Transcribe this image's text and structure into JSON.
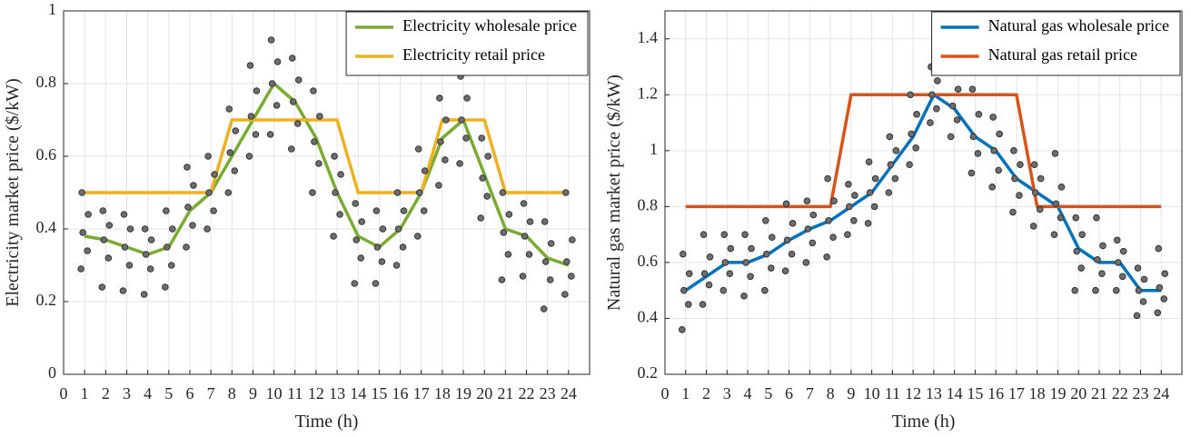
{
  "chart_data": [
    {
      "type": "line",
      "xlabel": "Time (h)",
      "ylabel": "Electricity market price ($/kW)",
      "xlim": [
        0,
        25
      ],
      "xticks": [
        0,
        1,
        2,
        3,
        4,
        5,
        6,
        7,
        8,
        9,
        10,
        11,
        12,
        13,
        14,
        15,
        16,
        17,
        18,
        19,
        20,
        21,
        22,
        23,
        24
      ],
      "ylim": [
        0,
        1
      ],
      "yticks": [
        0,
        0.2,
        0.4,
        0.6,
        0.8,
        1
      ],
      "grid": true,
      "legend": "upper right",
      "x": [
        1,
        2,
        3,
        4,
        5,
        6,
        7,
        8,
        9,
        10,
        11,
        12,
        13,
        14,
        15,
        16,
        17,
        18,
        19,
        20,
        21,
        22,
        23,
        24
      ],
      "series": [
        {
          "name": "Electricity wholesale price",
          "color": "#77ac30",
          "values": [
            0.38,
            0.37,
            0.35,
            0.33,
            0.35,
            0.45,
            0.5,
            0.6,
            0.7,
            0.8,
            0.75,
            0.65,
            0.5,
            0.38,
            0.35,
            0.4,
            0.5,
            0.65,
            0.7,
            0.55,
            0.4,
            0.38,
            0.32,
            0.3
          ]
        },
        {
          "name": "Electricity retail price",
          "color": "#edb120",
          "values": [
            0.5,
            0.5,
            0.5,
            0.5,
            0.5,
            0.5,
            0.5,
            0.7,
            0.7,
            0.7,
            0.7,
            0.7,
            0.7,
            0.5,
            0.5,
            0.5,
            0.5,
            0.7,
            0.7,
            0.7,
            0.5,
            0.5,
            0.5,
            0.5
          ]
        }
      ],
      "samples": {
        "color": "#6e6e6e",
        "values": [
          [
            0.29,
            0.34,
            0.39,
            0.44,
            0.5
          ],
          [
            0.24,
            0.32,
            0.37,
            0.41,
            0.45
          ],
          [
            0.23,
            0.3,
            0.35,
            0.4,
            0.44
          ],
          [
            0.22,
            0.29,
            0.33,
            0.37,
            0.4
          ],
          [
            0.24,
            0.3,
            0.35,
            0.4,
            0.45
          ],
          [
            0.35,
            0.41,
            0.46,
            0.52,
            0.57
          ],
          [
            0.4,
            0.45,
            0.5,
            0.55,
            0.6
          ],
          [
            0.5,
            0.56,
            0.61,
            0.67,
            0.73
          ],
          [
            0.6,
            0.66,
            0.71,
            0.78,
            0.85
          ],
          [
            0.66,
            0.74,
            0.8,
            0.86,
            0.92
          ],
          [
            0.62,
            0.69,
            0.75,
            0.81,
            0.87
          ],
          [
            0.5,
            0.58,
            0.64,
            0.71,
            0.78
          ],
          [
            0.38,
            0.44,
            0.5,
            0.55,
            0.6
          ],
          [
            0.25,
            0.32,
            0.37,
            0.42,
            0.47
          ],
          [
            0.25,
            0.31,
            0.35,
            0.4,
            0.45
          ],
          [
            0.3,
            0.35,
            0.4,
            0.45,
            0.5
          ],
          [
            0.38,
            0.45,
            0.5,
            0.56,
            0.62
          ],
          [
            0.52,
            0.59,
            0.64,
            0.7,
            0.76
          ],
          [
            0.58,
            0.65,
            0.7,
            0.76,
            0.82
          ],
          [
            0.43,
            0.49,
            0.54,
            0.6,
            0.65
          ],
          [
            0.26,
            0.33,
            0.39,
            0.44,
            0.5
          ],
          [
            0.27,
            0.33,
            0.38,
            0.42,
            0.47
          ],
          [
            0.18,
            0.26,
            0.31,
            0.36,
            0.42
          ],
          [
            0.22,
            0.27,
            0.31,
            0.37,
            0.5
          ]
        ]
      }
    },
    {
      "type": "line",
      "xlabel": "Time (h)",
      "ylabel": "Natural gas market price ($/kW)",
      "xlim": [
        0,
        25
      ],
      "xticks": [
        0,
        1,
        2,
        3,
        4,
        5,
        6,
        7,
        8,
        9,
        10,
        11,
        12,
        13,
        14,
        15,
        16,
        17,
        18,
        19,
        20,
        21,
        22,
        23,
        24
      ],
      "ylim": [
        0.2,
        1.5
      ],
      "yticks": [
        0.2,
        0.4,
        0.6,
        0.8,
        1,
        1.2,
        1.4
      ],
      "grid": true,
      "legend": "upper right",
      "x": [
        1,
        2,
        3,
        4,
        5,
        6,
        7,
        8,
        9,
        10,
        11,
        12,
        13,
        14,
        15,
        16,
        17,
        18,
        19,
        20,
        21,
        22,
        23,
        24
      ],
      "series": [
        {
          "name": "Natural gas wholesale price",
          "color": "#0072bd",
          "values": [
            0.5,
            0.55,
            0.6,
            0.6,
            0.63,
            0.68,
            0.72,
            0.75,
            0.8,
            0.85,
            0.95,
            1.05,
            1.2,
            1.15,
            1.05,
            1.0,
            0.9,
            0.85,
            0.8,
            0.65,
            0.6,
            0.6,
            0.5,
            0.5
          ]
        },
        {
          "name": "Natural gas retail price",
          "color": "#d95319",
          "values": [
            0.8,
            0.8,
            0.8,
            0.8,
            0.8,
            0.8,
            0.8,
            0.8,
            1.2,
            1.2,
            1.2,
            1.2,
            1.2,
            1.2,
            1.2,
            1.2,
            1.2,
            0.8,
            0.8,
            0.8,
            0.8,
            0.8,
            0.8,
            0.8
          ]
        }
      ],
      "samples": {
        "color": "#6e6e6e",
        "values": [
          [
            0.36,
            0.45,
            0.5,
            0.56,
            0.63
          ],
          [
            0.45,
            0.52,
            0.56,
            0.62,
            0.7
          ],
          [
            0.5,
            0.56,
            0.6,
            0.65,
            0.7
          ],
          [
            0.48,
            0.55,
            0.6,
            0.65,
            0.7
          ],
          [
            0.5,
            0.58,
            0.63,
            0.69,
            0.75
          ],
          [
            0.57,
            0.63,
            0.68,
            0.74,
            0.81
          ],
          [
            0.6,
            0.67,
            0.72,
            0.77,
            0.82
          ],
          [
            0.62,
            0.69,
            0.75,
            0.82,
            0.9
          ],
          [
            0.7,
            0.75,
            0.8,
            0.84,
            0.88
          ],
          [
            0.74,
            0.8,
            0.85,
            0.9,
            0.96
          ],
          [
            0.85,
            0.9,
            0.95,
            1.0,
            1.05
          ],
          [
            0.95,
            1.01,
            1.06,
            1.13,
            1.2
          ],
          [
            1.1,
            1.15,
            1.2,
            1.25,
            1.3
          ],
          [
            1.05,
            1.11,
            1.16,
            1.22,
            1.28
          ],
          [
            0.92,
            0.99,
            1.05,
            1.13,
            1.22
          ],
          [
            0.87,
            0.93,
            1.0,
            1.06,
            1.12
          ],
          [
            0.78,
            0.84,
            0.9,
            0.95,
            1.0
          ],
          [
            0.73,
            0.79,
            0.85,
            0.9,
            0.95
          ],
          [
            0.7,
            0.76,
            0.81,
            0.87,
            0.99
          ],
          [
            0.5,
            0.58,
            0.64,
            0.7,
            0.76
          ],
          [
            0.5,
            0.56,
            0.61,
            0.66,
            0.76
          ],
          [
            0.5,
            0.55,
            0.6,
            0.64,
            0.68
          ],
          [
            0.41,
            0.46,
            0.5,
            0.54,
            0.58
          ],
          [
            0.42,
            0.47,
            0.51,
            0.56,
            0.65
          ]
        ]
      }
    }
  ]
}
